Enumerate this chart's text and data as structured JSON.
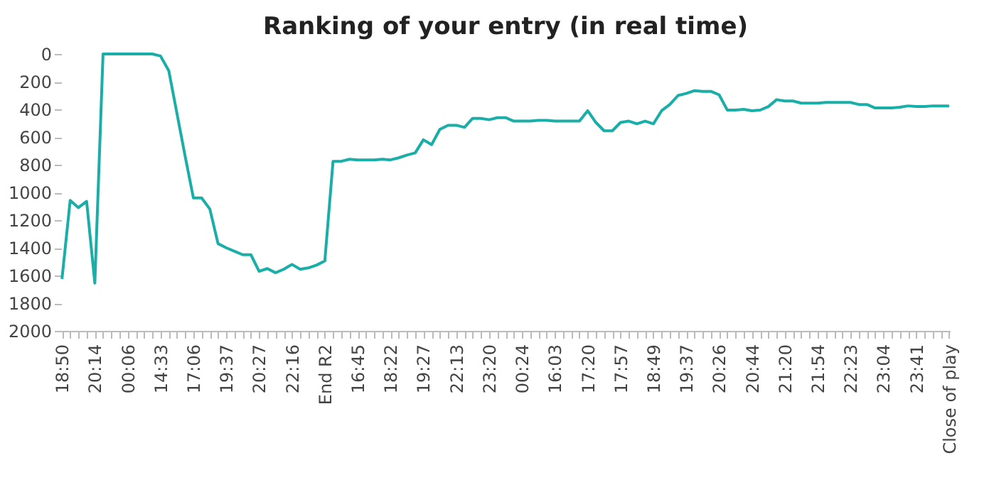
{
  "chart_data": {
    "type": "line",
    "title": "Ranking of your entry (in real time)",
    "categories": [
      "18:50",
      null,
      null,
      null,
      "20:14",
      null,
      null,
      null,
      "00:06",
      null,
      null,
      null,
      "14:33",
      null,
      null,
      null,
      "17:06",
      null,
      null,
      null,
      "19:37",
      null,
      null,
      null,
      "20:27",
      null,
      null,
      null,
      "22:16",
      null,
      null,
      null,
      "End R2",
      null,
      null,
      null,
      "16:45",
      null,
      null,
      null,
      "18:22",
      null,
      null,
      null,
      "19:27",
      null,
      null,
      null,
      "22:13",
      null,
      null,
      null,
      "23:20",
      null,
      null,
      null,
      "00:24",
      null,
      null,
      null,
      "16:03",
      null,
      null,
      null,
      "17:20",
      null,
      null,
      null,
      "17:57",
      null,
      null,
      null,
      "18:49",
      null,
      null,
      null,
      "19:37",
      null,
      null,
      null,
      "20:26",
      null,
      null,
      null,
      "20:44",
      null,
      null,
      null,
      "21:20",
      null,
      null,
      null,
      "21:54",
      null,
      null,
      null,
      "22:23",
      null,
      null,
      null,
      "23:04",
      null,
      null,
      null,
      "23:41",
      null,
      null,
      null,
      "Close of play"
    ],
    "series": [
      {
        "color": "#1aaea8",
        "values": [
          1625,
          1058,
          1110,
          1065,
          1655,
          0,
          0,
          0,
          0,
          0,
          0,
          0,
          15,
          120,
          430,
          740,
          1040,
          1040,
          1120,
          1370,
          1400,
          1425,
          1450,
          1450,
          1570,
          1550,
          1580,
          1555,
          1520,
          1555,
          1545,
          1525,
          1495,
          775,
          775,
          760,
          765,
          765,
          765,
          760,
          765,
          750,
          730,
          715,
          620,
          655,
          545,
          515,
          515,
          530,
          465,
          465,
          475,
          460,
          460,
          485,
          485,
          485,
          480,
          480,
          485,
          485,
          485,
          485,
          410,
          495,
          555,
          555,
          495,
          485,
          505,
          485,
          505,
          410,
          365,
          300,
          285,
          265,
          270,
          270,
          295,
          405,
          405,
          400,
          410,
          405,
          380,
          330,
          340,
          340,
          355,
          355,
          355,
          350,
          350,
          350,
          350,
          365,
          365,
          390,
          390,
          390,
          385,
          375,
          380,
          380,
          375,
          375,
          375
        ]
      }
    ],
    "ylim": [
      2000,
      0
    ],
    "yticks": [
      0,
      200,
      400,
      600,
      800,
      1000,
      1200,
      1400,
      1600,
      1800,
      2000
    ],
    "grid": false,
    "legend": false
  }
}
